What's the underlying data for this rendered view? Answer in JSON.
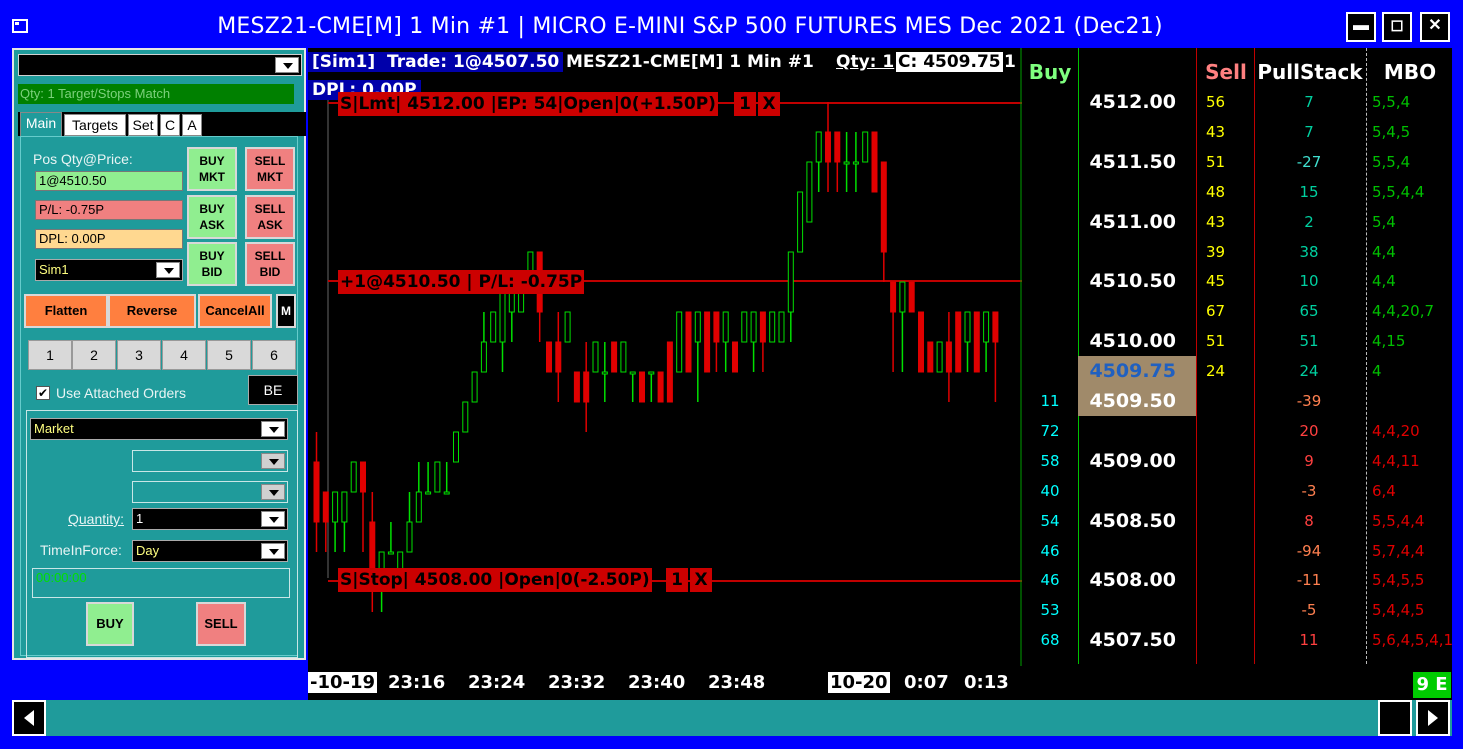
{
  "window": {
    "title": "MESZ21-CME[M]  1 Min   #1 | MICRO E-MINI S&P 500 FUTURES MES Dec 2021 (Dec21)",
    "min_label": "▬",
    "max_label": "◻",
    "close_label": "✕",
    "icon": "app-window-icon"
  },
  "trade_panel": {
    "qty_match": "Qty: 1 Target/Stops Match",
    "tabs": [
      "Main",
      "Targets",
      "Set",
      "C",
      "A"
    ],
    "pos_label": "Pos Qty@Price:",
    "pos_value": "1@4510.50",
    "pl_value": "P/L: -0.75P",
    "dpl_value": "DPL: 0.00P",
    "account": "Sim1",
    "buy_mkt": "BUY MKT",
    "sell_mkt": "SELL MKT",
    "buy_ask": "BUY ASK",
    "sell_ask": "SELL ASK",
    "buy_bid": "BUY BID",
    "sell_bid": "SELL BID",
    "flatten": "Flatten",
    "reverse": "Reverse",
    "cancel_all": "CancelAll",
    "m_label": "M",
    "qty_buttons": [
      "1",
      "2",
      "3",
      "4",
      "5",
      "6"
    ],
    "use_attached": "Use Attached Orders",
    "be_label": "BE",
    "order_type": "Market",
    "quantity_label": "Quantity:",
    "quantity_value": "1",
    "tif_label": "TimeInForce:",
    "tif_value": "Day",
    "timer": "00:00:00",
    "buy_label": "BUY",
    "sell_label": "SELL"
  },
  "chart_header": {
    "account": "[Sim1]",
    "trade": "Trade: 1@4507.50",
    "symbol": "MESZ21-CME[M]  1 Min   #1",
    "qty": "Qty: 1",
    "close": "C: 4509.75",
    "trail": "1",
    "dpl": "DPL: 0.00P"
  },
  "orders": {
    "target": "S|Lmt| 4512.00 |EP: 54|Open|0(+1.50P)",
    "position": "+1@4510.50 | P/L: -0.75P",
    "stop": "S|Stop| 4508.00 |Open|0(-2.50P)",
    "one": "1",
    "x": "X"
  },
  "time_axis": [
    "-10-19",
    "23:16",
    "23:24",
    "23:32",
    "23:40",
    "23:48",
    "10-20",
    "0:07",
    "0:13"
  ],
  "dom": {
    "headers": {
      "buy": "Buy",
      "sell": "Sell",
      "pull": "PullStack",
      "mbo": "MBO"
    },
    "rows": [
      {
        "buy": "",
        "price": "4512.00",
        "sell": "56",
        "pull": "7",
        "mbo": "5,5,4",
        "side": "ask"
      },
      {
        "buy": "",
        "price": "",
        "sell": "43",
        "pull": "7",
        "mbo": "5,4,5",
        "side": "ask"
      },
      {
        "buy": "",
        "price": "4511.50",
        "sell": "51",
        "pull": "-27",
        "mbo": "5,5,4",
        "side": "ask"
      },
      {
        "buy": "",
        "price": "",
        "sell": "48",
        "pull": "15",
        "mbo": "5,5,4,4",
        "side": "ask"
      },
      {
        "buy": "",
        "price": "4511.00",
        "sell": "43",
        "pull": "2",
        "mbo": "5,4",
        "side": "ask"
      },
      {
        "buy": "",
        "price": "",
        "sell": "39",
        "pull": "38",
        "mbo": "4,4",
        "side": "ask"
      },
      {
        "buy": "",
        "price": "4510.50",
        "sell": "45",
        "pull": "10",
        "mbo": "4,4",
        "side": "ask"
      },
      {
        "buy": "",
        "price": "",
        "sell": "67",
        "pull": "65",
        "mbo": "4,4,20,7",
        "side": "ask"
      },
      {
        "buy": "",
        "price": "4510.00",
        "sell": "51",
        "pull": "51",
        "mbo": "4,15",
        "side": "ask"
      },
      {
        "buy": "",
        "price": "4509.75",
        "sell": "24",
        "pull": "24",
        "mbo": "4",
        "side": "ask-inside"
      },
      {
        "buy": "11",
        "price": "4509.50",
        "sell": "",
        "pull": "-39",
        "mbo": "",
        "side": "bid-inside"
      },
      {
        "buy": "72",
        "price": "",
        "sell": "",
        "pull": "20",
        "mbo": "4,4,20",
        "side": "bid"
      },
      {
        "buy": "58",
        "price": "4509.00",
        "sell": "",
        "pull": "9",
        "mbo": "4,4,11",
        "side": "bid"
      },
      {
        "buy": "40",
        "price": "",
        "sell": "",
        "pull": "-3",
        "mbo": "6,4",
        "side": "bid"
      },
      {
        "buy": "54",
        "price": "4508.50",
        "sell": "",
        "pull": "8",
        "mbo": "5,5,4,4",
        "side": "bid"
      },
      {
        "buy": "46",
        "price": "",
        "sell": "",
        "pull": "-94",
        "mbo": "5,7,4,4",
        "side": "bid"
      },
      {
        "buy": "46",
        "price": "4508.00",
        "sell": "",
        "pull": "-11",
        "mbo": "5,4,5,5",
        "side": "bid"
      },
      {
        "buy": "53",
        "price": "",
        "sell": "",
        "pull": "-5",
        "mbo": "5,4,4,5",
        "side": "bid"
      },
      {
        "buy": "68",
        "price": "4507.50",
        "sell": "",
        "pull": "11",
        "mbo": "5,6,4,5,4,1",
        "side": "bid"
      }
    ]
  },
  "page_count": "9 E",
  "colors": {
    "up": "#00e000",
    "down": "#e00000",
    "panel": "#1f9b9b",
    "frame": "#0000ff"
  }
}
